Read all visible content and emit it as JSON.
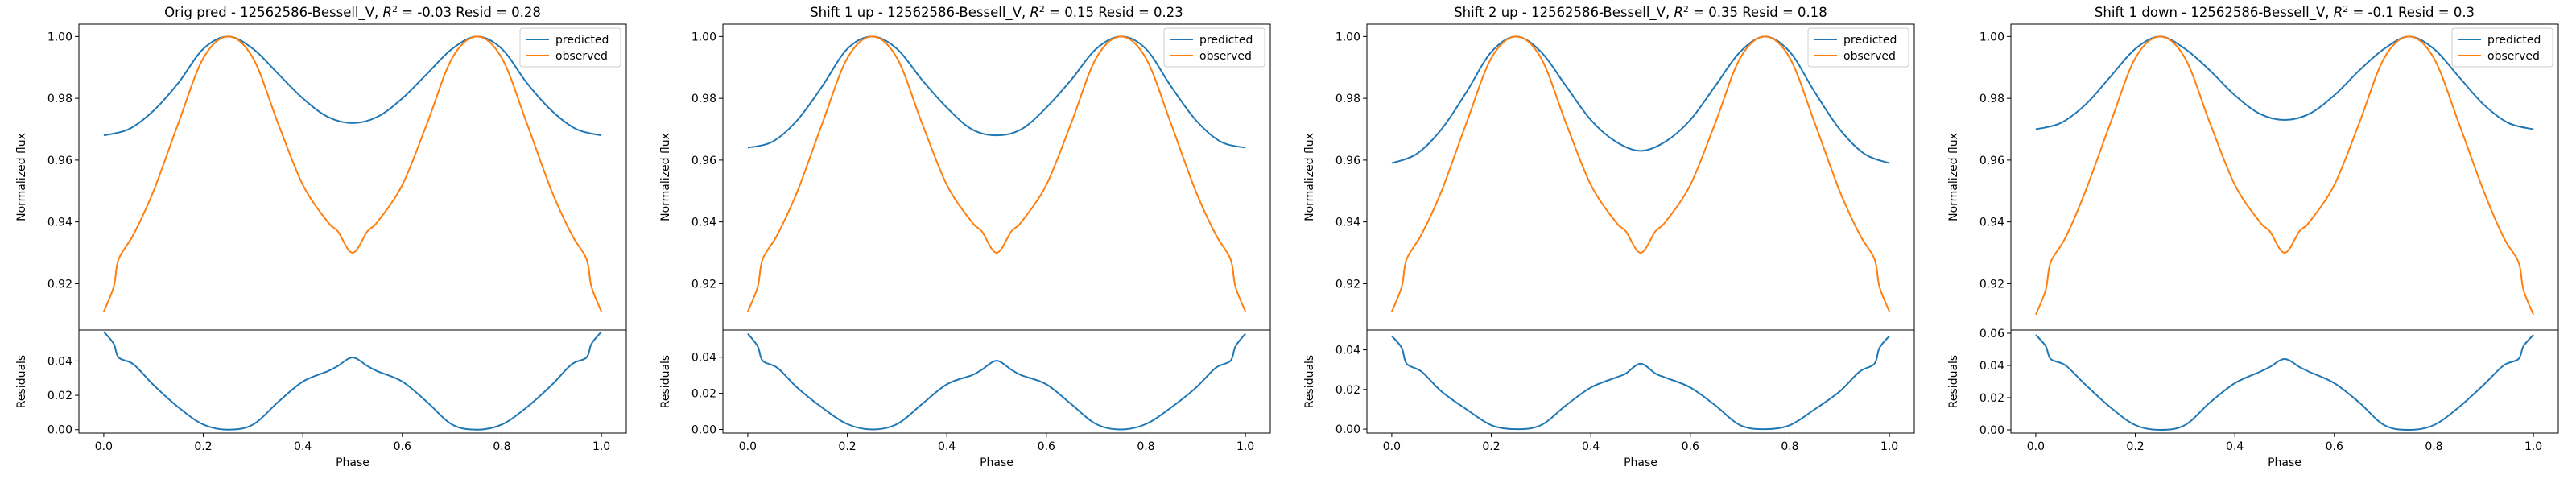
{
  "chart_data": [
    {
      "type": "line",
      "title": "Orig pred - 12562586-Bessell_V, $R^2 = $-0.03 Resid = 0.28",
      "title_parts": {
        "pre": "Orig pred - 12562586-Bessell_V, ",
        "r": "R",
        "sup": "2",
        "post": " = -0.03 Resid = 0.28"
      },
      "xlabel": "Phase",
      "ylabel_top": "Normalized flux",
      "ylabel_bottom": "Residuals",
      "xlim": [
        -0.05,
        1.05
      ],
      "ylim_top": [
        0.905,
        1.004
      ],
      "ylim_bottom": [
        -0.002,
        0.058
      ],
      "x_ticks": [
        "0.0",
        "0.2",
        "0.4",
        "0.6",
        "0.8",
        "1.0"
      ],
      "y_ticks_top": [
        "0.92",
        "0.94",
        "0.96",
        "0.98",
        "1.00"
      ],
      "y_ticks_bottom": [
        "0.00",
        "0.02",
        "0.04"
      ],
      "legend": {
        "position": "top-right",
        "entries": [
          "predicted",
          "observed"
        ]
      },
      "series": [
        {
          "name": "predicted",
          "color": "#1f77b4",
          "x": [
            0.0,
            0.05,
            0.1,
            0.15,
            0.2,
            0.25,
            0.3,
            0.35,
            0.4,
            0.45,
            0.5,
            0.55,
            0.6,
            0.65,
            0.7,
            0.75,
            0.8,
            0.85,
            0.9,
            0.95,
            1.0
          ],
          "y": [
            0.968,
            0.97,
            0.976,
            0.985,
            0.996,
            1.0,
            0.996,
            0.988,
            0.98,
            0.974,
            0.972,
            0.974,
            0.98,
            0.988,
            0.996,
            1.0,
            0.996,
            0.985,
            0.976,
            0.97,
            0.968
          ]
        },
        {
          "name": "observed",
          "color": "#ff7f0e",
          "x": [
            0.0,
            0.02,
            0.03,
            0.06,
            0.1,
            0.15,
            0.2,
            0.25,
            0.3,
            0.35,
            0.4,
            0.45,
            0.47,
            0.5,
            0.53,
            0.55,
            0.6,
            0.65,
            0.7,
            0.75,
            0.8,
            0.85,
            0.9,
            0.94,
            0.97,
            0.98,
            1.0
          ],
          "y": [
            0.911,
            0.919,
            0.928,
            0.936,
            0.95,
            0.972,
            0.993,
            1.0,
            0.993,
            0.972,
            0.952,
            0.94,
            0.937,
            0.93,
            0.937,
            0.94,
            0.952,
            0.972,
            0.993,
            1.0,
            0.993,
            0.972,
            0.95,
            0.936,
            0.928,
            0.919,
            0.911
          ]
        },
        {
          "name": "residuals",
          "color": "#1f77b4",
          "x": [
            0.0,
            0.02,
            0.03,
            0.06,
            0.1,
            0.15,
            0.2,
            0.25,
            0.3,
            0.35,
            0.4,
            0.45,
            0.47,
            0.5,
            0.53,
            0.55,
            0.6,
            0.65,
            0.7,
            0.75,
            0.8,
            0.85,
            0.9,
            0.94,
            0.97,
            0.98,
            1.0
          ],
          "y": [
            0.057,
            0.05,
            0.042,
            0.038,
            0.026,
            0.013,
            0.003,
            0.0,
            0.003,
            0.016,
            0.028,
            0.034,
            0.037,
            0.042,
            0.037,
            0.034,
            0.028,
            0.016,
            0.003,
            0.0,
            0.003,
            0.013,
            0.026,
            0.038,
            0.042,
            0.05,
            0.057
          ]
        }
      ]
    },
    {
      "type": "line",
      "title": "Shift 1 up - 12562586-Bessell_V, $R^2 = $0.15 Resid = 0.23",
      "title_parts": {
        "pre": "Shift 1 up - 12562586-Bessell_V, ",
        "r": "R",
        "sup": "2",
        "post": " = 0.15 Resid = 0.23"
      },
      "xlabel": "Phase",
      "ylabel_top": "Normalized flux",
      "ylabel_bottom": "Residuals",
      "xlim": [
        -0.05,
        1.05
      ],
      "ylim_top": [
        0.905,
        1.004
      ],
      "ylim_bottom": [
        -0.002,
        0.055
      ],
      "x_ticks": [
        "0.0",
        "0.2",
        "0.4",
        "0.6",
        "0.8",
        "1.0"
      ],
      "y_ticks_top": [
        "0.92",
        "0.94",
        "0.96",
        "0.98",
        "1.00"
      ],
      "y_ticks_bottom": [
        "0.00",
        "0.02",
        "0.04"
      ],
      "legend": {
        "position": "top-right",
        "entries": [
          "predicted",
          "observed"
        ]
      },
      "series": [
        {
          "name": "predicted",
          "color": "#1f77b4",
          "x": [
            0.0,
            0.05,
            0.1,
            0.15,
            0.2,
            0.25,
            0.3,
            0.35,
            0.4,
            0.45,
            0.5,
            0.55,
            0.6,
            0.65,
            0.7,
            0.75,
            0.8,
            0.85,
            0.9,
            0.95,
            1.0
          ],
          "y": [
            0.964,
            0.966,
            0.973,
            0.984,
            0.996,
            1.0,
            0.996,
            0.986,
            0.977,
            0.97,
            0.968,
            0.97,
            0.977,
            0.986,
            0.996,
            1.0,
            0.996,
            0.984,
            0.973,
            0.966,
            0.964
          ]
        },
        {
          "name": "observed",
          "color": "#ff7f0e",
          "x": [
            0.0,
            0.02,
            0.03,
            0.06,
            0.1,
            0.15,
            0.2,
            0.25,
            0.3,
            0.35,
            0.4,
            0.45,
            0.47,
            0.5,
            0.53,
            0.55,
            0.6,
            0.65,
            0.7,
            0.75,
            0.8,
            0.85,
            0.9,
            0.94,
            0.97,
            0.98,
            1.0
          ],
          "y": [
            0.911,
            0.919,
            0.928,
            0.936,
            0.95,
            0.972,
            0.993,
            1.0,
            0.993,
            0.972,
            0.952,
            0.94,
            0.937,
            0.93,
            0.937,
            0.94,
            0.952,
            0.972,
            0.993,
            1.0,
            0.993,
            0.972,
            0.95,
            0.936,
            0.928,
            0.919,
            0.911
          ]
        },
        {
          "name": "residuals",
          "color": "#1f77b4",
          "x": [
            0.0,
            0.02,
            0.03,
            0.06,
            0.1,
            0.15,
            0.2,
            0.25,
            0.3,
            0.35,
            0.4,
            0.45,
            0.47,
            0.5,
            0.53,
            0.55,
            0.6,
            0.65,
            0.7,
            0.75,
            0.8,
            0.85,
            0.9,
            0.94,
            0.97,
            0.98,
            1.0
          ],
          "y": [
            0.053,
            0.046,
            0.038,
            0.034,
            0.023,
            0.012,
            0.003,
            0.0,
            0.003,
            0.014,
            0.025,
            0.03,
            0.033,
            0.038,
            0.033,
            0.03,
            0.025,
            0.014,
            0.003,
            0.0,
            0.003,
            0.012,
            0.023,
            0.034,
            0.038,
            0.046,
            0.053
          ]
        }
      ]
    },
    {
      "type": "line",
      "title": "Shift 2 up - 12562586-Bessell_V, $R^2 = $0.35 Resid = 0.18",
      "title_parts": {
        "pre": "Shift 2 up - 12562586-Bessell_V, ",
        "r": "R",
        "sup": "2",
        "post": " = 0.35 Resid = 0.18"
      },
      "xlabel": "Phase",
      "ylabel_top": "Normalized flux",
      "ylabel_bottom": "Residuals",
      "xlim": [
        -0.05,
        1.05
      ],
      "ylim_top": [
        0.905,
        1.004
      ],
      "ylim_bottom": [
        -0.002,
        0.05
      ],
      "x_ticks": [
        "0.0",
        "0.2",
        "0.4",
        "0.6",
        "0.8",
        "1.0"
      ],
      "y_ticks_top": [
        "0.92",
        "0.94",
        "0.96",
        "0.98",
        "1.00"
      ],
      "y_ticks_bottom": [
        "0.00",
        "0.02",
        "0.04"
      ],
      "legend": {
        "position": "top-right",
        "entries": [
          "predicted",
          "observed"
        ]
      },
      "series": [
        {
          "name": "predicted",
          "color": "#1f77b4",
          "x": [
            0.0,
            0.05,
            0.1,
            0.15,
            0.2,
            0.25,
            0.3,
            0.35,
            0.4,
            0.45,
            0.5,
            0.55,
            0.6,
            0.65,
            0.7,
            0.75,
            0.8,
            0.85,
            0.9,
            0.95,
            1.0
          ],
          "y": [
            0.959,
            0.962,
            0.97,
            0.982,
            0.995,
            1.0,
            0.995,
            0.984,
            0.973,
            0.966,
            0.963,
            0.966,
            0.973,
            0.984,
            0.995,
            1.0,
            0.995,
            0.982,
            0.97,
            0.962,
            0.959
          ]
        },
        {
          "name": "observed",
          "color": "#ff7f0e",
          "x": [
            0.0,
            0.02,
            0.03,
            0.06,
            0.1,
            0.15,
            0.2,
            0.25,
            0.3,
            0.35,
            0.4,
            0.45,
            0.47,
            0.5,
            0.53,
            0.55,
            0.6,
            0.65,
            0.7,
            0.75,
            0.8,
            0.85,
            0.9,
            0.94,
            0.97,
            0.98,
            1.0
          ],
          "y": [
            0.911,
            0.919,
            0.928,
            0.936,
            0.95,
            0.972,
            0.993,
            1.0,
            0.993,
            0.972,
            0.952,
            0.94,
            0.937,
            0.93,
            0.937,
            0.94,
            0.952,
            0.972,
            0.993,
            1.0,
            0.993,
            0.972,
            0.95,
            0.936,
            0.928,
            0.919,
            0.911
          ]
        },
        {
          "name": "residuals",
          "color": "#1f77b4",
          "x": [
            0.0,
            0.02,
            0.03,
            0.06,
            0.1,
            0.15,
            0.2,
            0.25,
            0.3,
            0.35,
            0.4,
            0.45,
            0.47,
            0.5,
            0.53,
            0.55,
            0.6,
            0.65,
            0.7,
            0.75,
            0.8,
            0.85,
            0.9,
            0.94,
            0.97,
            0.98,
            1.0
          ],
          "y": [
            0.047,
            0.041,
            0.033,
            0.029,
            0.019,
            0.01,
            0.002,
            0.0,
            0.002,
            0.012,
            0.021,
            0.026,
            0.028,
            0.033,
            0.028,
            0.026,
            0.021,
            0.012,
            0.002,
            0.0,
            0.002,
            0.01,
            0.019,
            0.029,
            0.033,
            0.041,
            0.047
          ]
        }
      ]
    },
    {
      "type": "line",
      "title": "Shift 1 down - 12562586-Bessell_V, $R^2 = $-0.1 Resid = 0.3",
      "title_parts": {
        "pre": "Shift 1 down - 12562586-Bessell_V, ",
        "r": "R",
        "sup": "2",
        "post": " = -0.1 Resid = 0.3"
      },
      "xlabel": "Phase",
      "ylabel_top": "Normalized flux",
      "ylabel_bottom": "Residuals",
      "xlim": [
        -0.05,
        1.05
      ],
      "ylim_top": [
        0.905,
        1.004
      ],
      "ylim_bottom": [
        -0.002,
        0.062
      ],
      "x_ticks": [
        "0.0",
        "0.2",
        "0.4",
        "0.6",
        "0.8",
        "1.0"
      ],
      "y_ticks_top": [
        "0.92",
        "0.94",
        "0.96",
        "0.98",
        "1.00"
      ],
      "y_ticks_bottom": [
        "0.00",
        "0.02",
        "0.04",
        "0.06"
      ],
      "legend": {
        "position": "top-right",
        "entries": [
          "predicted",
          "observed"
        ]
      },
      "series": [
        {
          "name": "predicted",
          "color": "#1f77b4",
          "x": [
            0.0,
            0.05,
            0.1,
            0.15,
            0.2,
            0.25,
            0.3,
            0.35,
            0.4,
            0.45,
            0.5,
            0.55,
            0.6,
            0.65,
            0.7,
            0.75,
            0.8,
            0.85,
            0.9,
            0.95,
            1.0
          ],
          "y": [
            0.97,
            0.972,
            0.978,
            0.987,
            0.996,
            1.0,
            0.996,
            0.989,
            0.981,
            0.975,
            0.973,
            0.975,
            0.981,
            0.989,
            0.996,
            1.0,
            0.996,
            0.987,
            0.978,
            0.972,
            0.97
          ]
        },
        {
          "name": "observed",
          "color": "#ff7f0e",
          "x": [
            0.0,
            0.02,
            0.03,
            0.06,
            0.1,
            0.15,
            0.2,
            0.25,
            0.3,
            0.35,
            0.4,
            0.45,
            0.47,
            0.5,
            0.53,
            0.55,
            0.6,
            0.65,
            0.7,
            0.75,
            0.8,
            0.85,
            0.9,
            0.94,
            0.97,
            0.98,
            1.0
          ],
          "y": [
            0.91,
            0.918,
            0.927,
            0.935,
            0.95,
            0.972,
            0.993,
            1.0,
            0.993,
            0.972,
            0.952,
            0.94,
            0.937,
            0.93,
            0.937,
            0.94,
            0.952,
            0.972,
            0.993,
            1.0,
            0.993,
            0.972,
            0.95,
            0.935,
            0.927,
            0.918,
            0.91
          ]
        },
        {
          "name": "residuals",
          "color": "#1f77b4",
          "x": [
            0.0,
            0.02,
            0.03,
            0.06,
            0.1,
            0.15,
            0.2,
            0.25,
            0.3,
            0.35,
            0.4,
            0.45,
            0.47,
            0.5,
            0.53,
            0.55,
            0.6,
            0.65,
            0.7,
            0.75,
            0.8,
            0.85,
            0.9,
            0.94,
            0.97,
            0.98,
            1.0
          ],
          "y": [
            0.059,
            0.052,
            0.044,
            0.04,
            0.028,
            0.014,
            0.003,
            0.0,
            0.003,
            0.017,
            0.029,
            0.036,
            0.039,
            0.044,
            0.039,
            0.036,
            0.029,
            0.017,
            0.003,
            0.0,
            0.003,
            0.014,
            0.028,
            0.04,
            0.044,
            0.052,
            0.059
          ]
        }
      ]
    }
  ]
}
